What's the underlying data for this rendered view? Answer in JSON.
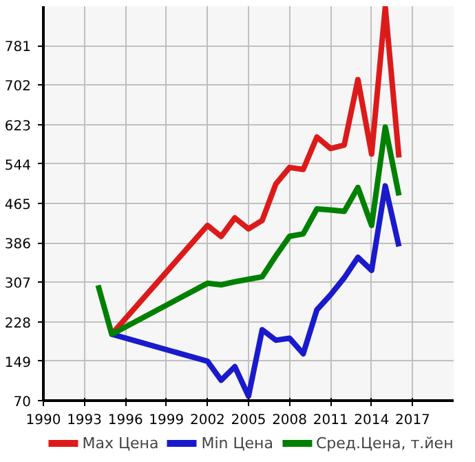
{
  "chart_data": {
    "type": "line",
    "x": [
      1994,
      1995,
      2002,
      2003,
      2004,
      2005,
      2006,
      2007,
      2008,
      2009,
      2010,
      2011,
      2012,
      2013,
      2014,
      2015,
      2016
    ],
    "series": [
      {
        "name": "Max Цена",
        "color": "#dd1a1a",
        "values": [
          null,
          203,
          421,
          399,
          436,
          414,
          431,
          504,
          537,
          533,
          598,
          575,
          582,
          713,
          564,
          858,
          557
        ]
      },
      {
        "name": "Min Цена",
        "color": "#1a1acc",
        "values": [
          null,
          203,
          149,
          111,
          138,
          79,
          212,
          191,
          195,
          164,
          252,
          282,
          316,
          357,
          331,
          500,
          379
        ]
      },
      {
        "name": "Сред.Цена, т.йен",
        "color": "#008000",
        "values": [
          301,
          203,
          305,
          302,
          308,
          313,
          318,
          360,
          399,
          404,
          454,
          452,
          449,
          497,
          421,
          618,
          481
        ]
      }
    ],
    "xlim": [
      1990,
      2020
    ],
    "xticks": [
      1990,
      1993,
      1996,
      1999,
      2002,
      2005,
      2008,
      2011,
      2014,
      2017
    ],
    "ylim": [
      70,
      860
    ],
    "yticks": [
      70,
      149,
      228,
      307,
      386,
      465,
      544,
      623,
      702,
      781
    ],
    "grid": true,
    "legend": "bottom",
    "marker": "none",
    "line_style": "solid"
  }
}
